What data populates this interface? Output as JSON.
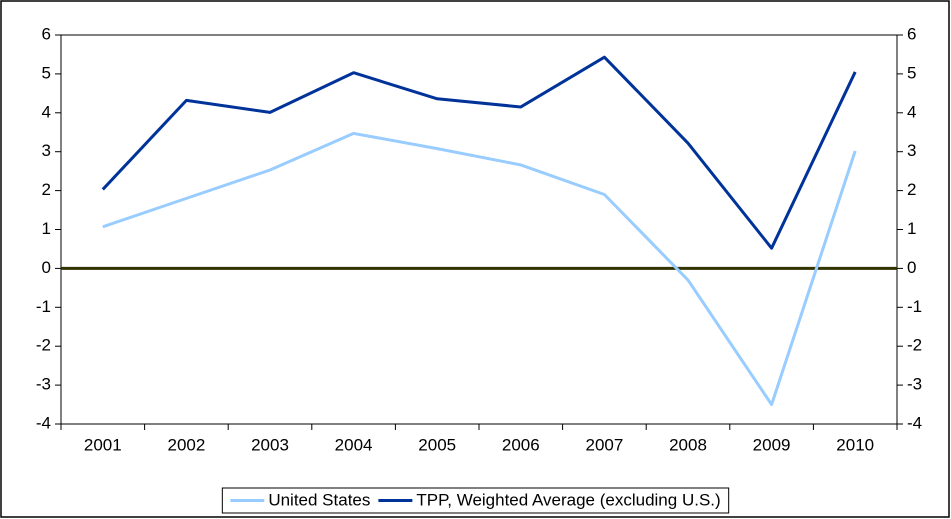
{
  "chart_data": {
    "type": "line",
    "categories": [
      "2001",
      "2002",
      "2003",
      "2004",
      "2005",
      "2006",
      "2007",
      "2008",
      "2009",
      "2010"
    ],
    "series": [
      {
        "name": "United States",
        "color": "#99ccff",
        "values": [
          1.07,
          1.8,
          2.53,
          3.47,
          3.08,
          2.66,
          1.9,
          -0.3,
          -3.5,
          3.02
        ]
      },
      {
        "name": "TPP, Weighted Average (excluding U.S.)",
        "color": "#003399",
        "values": [
          2.03,
          4.32,
          4.01,
          5.03,
          4.36,
          4.15,
          5.43,
          3.22,
          0.52,
          5.05
        ]
      }
    ],
    "ylim": [
      -4,
      6
    ],
    "yticks": [
      -4,
      -3,
      -2,
      -1,
      0,
      1,
      2,
      3,
      4,
      5,
      6
    ],
    "y2lim": [
      -4,
      6
    ],
    "y2ticks": [
      -4,
      -3,
      -2,
      -1,
      0,
      1,
      2,
      3,
      4,
      5,
      6
    ],
    "grid": false,
    "legend": "bottom"
  }
}
